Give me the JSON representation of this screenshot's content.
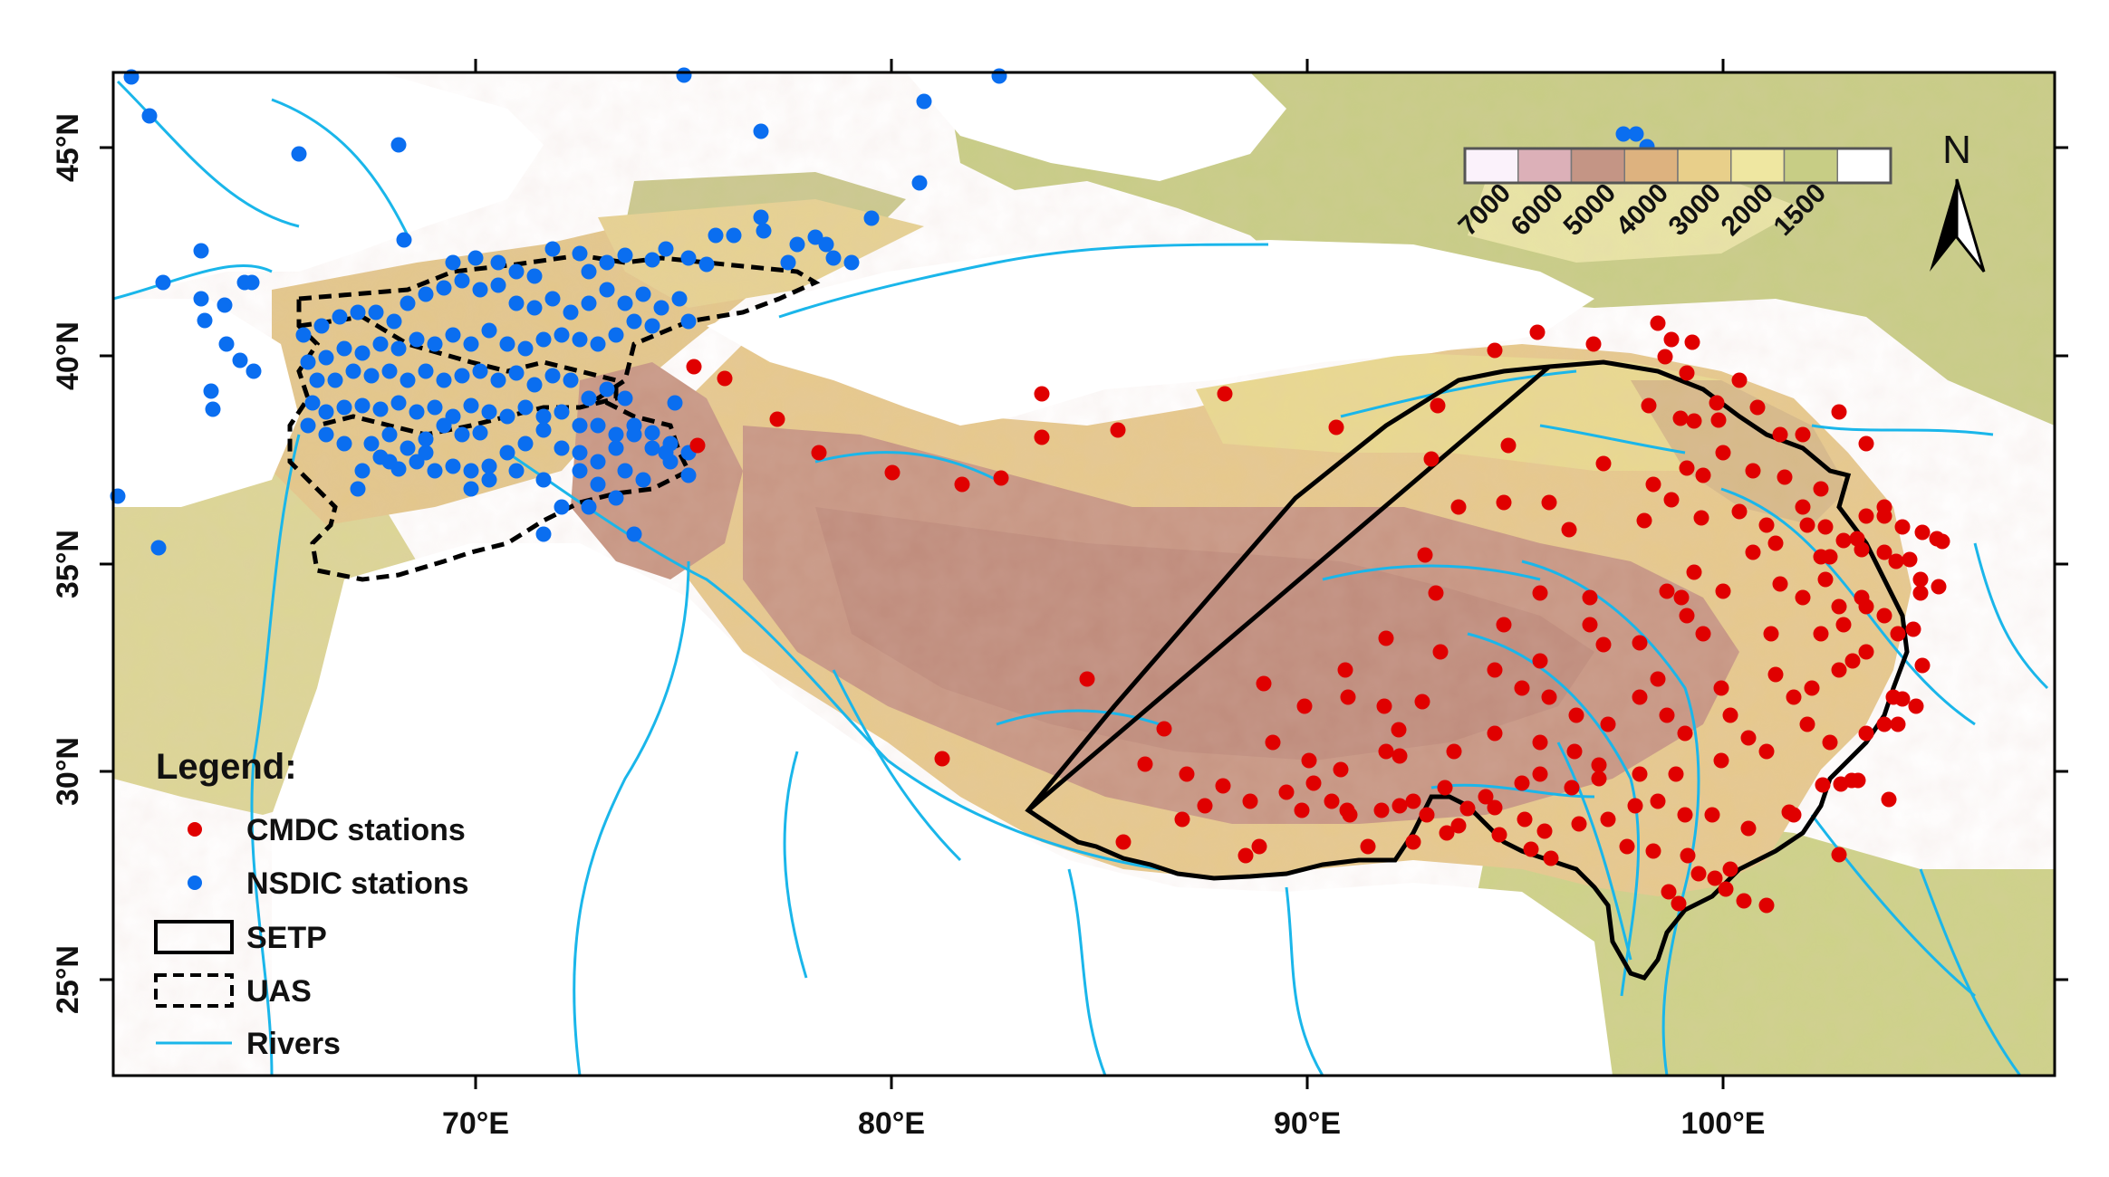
{
  "map": {
    "x_ticks": [
      "70°E",
      "80°E",
      "90°E",
      "100°E"
    ],
    "y_ticks": [
      "45°N",
      "40°N",
      "35°N",
      "30°N",
      "25°N"
    ],
    "north_label": "N"
  },
  "legend": {
    "title": "Legend:",
    "items": [
      {
        "label": "CMDC stations",
        "symbol": "red-dot",
        "color": "#e00000"
      },
      {
        "label": "NSDIC stations",
        "symbol": "blue-dot",
        "color": "#0a6ef0"
      },
      {
        "label": "SETP",
        "symbol": "solid-box"
      },
      {
        "label": "UAS",
        "symbol": "dashed-box"
      },
      {
        "label": "Rivers",
        "symbol": "line",
        "color": "#1ab6ea"
      }
    ]
  },
  "elevation_legend": {
    "labels": [
      "7000",
      "6000",
      "5000",
      "4000",
      "3000",
      "2000",
      "1500"
    ],
    "colors": [
      "#fbf2fb",
      "#dcb0b8",
      "#c49585",
      "#ddb27f",
      "#e8cf8a",
      "#efe7a1",
      "#c7cd85",
      "#ffffff"
    ]
  },
  "colors": {
    "cmdc": "#e00000",
    "nsdic": "#0a6ef0",
    "river": "#1ab6ea"
  }
}
